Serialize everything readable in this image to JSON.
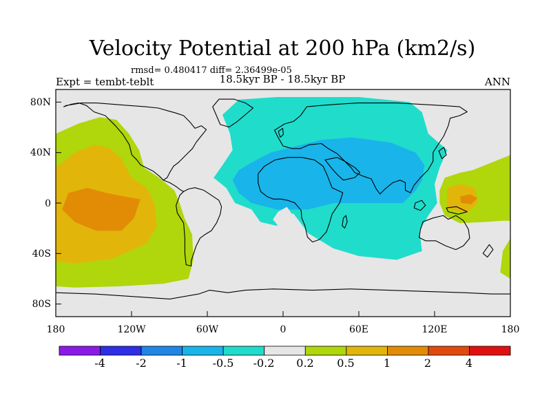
{
  "chart_data": {
    "type": "heatmap",
    "title": "Velocity Potential at 200 hPa (km2/s)",
    "stats": "rmsd= 0.480417 diff= 2.36499e-05",
    "left_label": "Expt = tembt-teblt",
    "center_label": "18.5kyr BP - 18.5kyr BP",
    "right_label": "ANN",
    "x_axis": {
      "range": [
        -180,
        180
      ],
      "ticks": [
        -180,
        -120,
        -60,
        0,
        60,
        120,
        180
      ],
      "tick_labels": [
        "180",
        "120W",
        "60W",
        "0",
        "60E",
        "120E",
        "180"
      ]
    },
    "y_axis": {
      "range": [
        -90,
        90
      ],
      "ticks": [
        80,
        40,
        0,
        -40,
        -80
      ],
      "tick_labels": [
        "80N",
        "40N",
        "0",
        "40S",
        "80S"
      ]
    },
    "colorbar": {
      "colors": [
        "#8a1be6",
        "#2d2ee6",
        "#1f86e6",
        "#19b4ea",
        "#20dccb",
        "#e6e6e6",
        "#b0d60c",
        "#e2b50a",
        "#e28c05",
        "#e04a0f",
        "#e01010"
      ],
      "labels": [
        "-4",
        "-2",
        "-1",
        "-0.5",
        "-0.2",
        "0.2",
        "0.5",
        "1",
        "2",
        "4"
      ]
    },
    "regions": [
      {
        "level": "-0.2 to -0.5",
        "color": "#20dccb",
        "points": [
          [
            -35,
            82
          ],
          [
            -5,
            84
          ],
          [
            60,
            84
          ],
          [
            100,
            80
          ],
          [
            110,
            72
          ],
          [
            115,
            55
          ],
          [
            130,
            42
          ],
          [
            124,
            28
          ],
          [
            120,
            15
          ],
          [
            122,
            0
          ],
          [
            115,
            -10
          ],
          [
            108,
            -22
          ],
          [
            110,
            -38
          ],
          [
            90,
            -45
          ],
          [
            60,
            -42
          ],
          [
            40,
            -36
          ],
          [
            20,
            -24
          ],
          [
            8,
            -8
          ],
          [
            2,
            -15
          ],
          [
            -5,
            -18
          ],
          [
            -18,
            -15
          ],
          [
            -25,
            -5
          ],
          [
            -38,
            0
          ],
          [
            -45,
            12
          ],
          [
            -55,
            20
          ],
          [
            -48,
            30
          ],
          [
            -40,
            42
          ],
          [
            -42,
            55
          ],
          [
            -48,
            70
          ]
        ]
      },
      {
        "level": "-0.5 to -1",
        "color": "#19b4ea",
        "points": [
          [
            -35,
            26
          ],
          [
            -25,
            32
          ],
          [
            -10,
            40
          ],
          [
            10,
            45
          ],
          [
            30,
            50
          ],
          [
            55,
            52
          ],
          [
            85,
            48
          ],
          [
            105,
            40
          ],
          [
            112,
            30
          ],
          [
            110,
            18
          ],
          [
            105,
            10
          ],
          [
            95,
            0
          ],
          [
            70,
            0
          ],
          [
            40,
            0
          ],
          [
            20,
            -5
          ],
          [
            -5,
            -5
          ],
          [
            -25,
            0
          ],
          [
            -35,
            8
          ],
          [
            -40,
            18
          ]
        ]
      },
      {
        "level": "0.2 to 0.5",
        "color": "#b0d60c",
        "points": [
          [
            -180,
            55
          ],
          [
            -162,
            63
          ],
          [
            -145,
            68
          ],
          [
            -132,
            66
          ],
          [
            -122,
            55
          ],
          [
            -114,
            42
          ],
          [
            -110,
            28
          ],
          [
            -98,
            20
          ],
          [
            -86,
            10
          ],
          [
            -82,
            0
          ],
          [
            -78,
            -12
          ],
          [
            -72,
            -25
          ],
          [
            -71,
            -45
          ],
          [
            -75,
            -60
          ],
          [
            -95,
            -64
          ],
          [
            -130,
            -66
          ],
          [
            -165,
            -67
          ],
          [
            -180,
            -66
          ]
        ]
      },
      {
        "level": "0.5 to 1",
        "color": "#e2b50a",
        "points": [
          [
            -180,
            28
          ],
          [
            -165,
            40
          ],
          [
            -150,
            46
          ],
          [
            -138,
            44
          ],
          [
            -128,
            35
          ],
          [
            -120,
            20
          ],
          [
            -108,
            12
          ],
          [
            -102,
            0
          ],
          [
            -100,
            -18
          ],
          [
            -108,
            -32
          ],
          [
            -135,
            -44
          ],
          [
            -165,
            -48
          ],
          [
            -180,
            -46
          ]
        ]
      },
      {
        "level": "1 to 2",
        "color": "#e28c05",
        "points": [
          [
            -170,
            8
          ],
          [
            -155,
            12
          ],
          [
            -140,
            8
          ],
          [
            -125,
            5
          ],
          [
            -113,
            3
          ],
          [
            -118,
            -12
          ],
          [
            -128,
            -22
          ],
          [
            -148,
            -22
          ],
          [
            -165,
            -15
          ],
          [
            -175,
            -5
          ]
        ]
      },
      {
        "level": "0.2 to 0.5",
        "color": "#b0d60c",
        "points": [
          [
            180,
            38
          ],
          [
            165,
            32
          ],
          [
            150,
            26
          ],
          [
            140,
            24
          ],
          [
            128,
            20
          ],
          [
            124,
            10
          ],
          [
            124,
            0
          ],
          [
            128,
            -10
          ],
          [
            140,
            -16
          ],
          [
            160,
            -15
          ],
          [
            173,
            -14
          ],
          [
            180,
            -14
          ]
        ]
      },
      {
        "level": "0.2 to 0.5",
        "color": "#b0d60c",
        "points": [
          [
            180,
            -28
          ],
          [
            174,
            -38
          ],
          [
            172,
            -55
          ],
          [
            180,
            -60
          ]
        ]
      },
      {
        "level": "0.5 to 1",
        "color": "#e2b50a",
        "points": [
          [
            130,
            12
          ],
          [
            140,
            15
          ],
          [
            152,
            12
          ],
          [
            154,
            0
          ],
          [
            145,
            -8
          ],
          [
            130,
            -4
          ]
        ]
      },
      {
        "level": "1 to 2",
        "color": "#e28c05",
        "points": [
          [
            140,
            5
          ],
          [
            148,
            7
          ],
          [
            154,
            4
          ],
          [
            149,
            -1
          ],
          [
            141,
            0
          ]
        ]
      },
      {
        "level": "-0.2 to 0.2",
        "color": "#e6e6e6",
        "points": [
          [
            -4,
            -7
          ],
          [
            3,
            -3
          ],
          [
            8,
            -10
          ],
          [
            4,
            -19
          ],
          [
            -4,
            -18
          ],
          [
            -8,
            -13
          ]
        ]
      }
    ]
  }
}
